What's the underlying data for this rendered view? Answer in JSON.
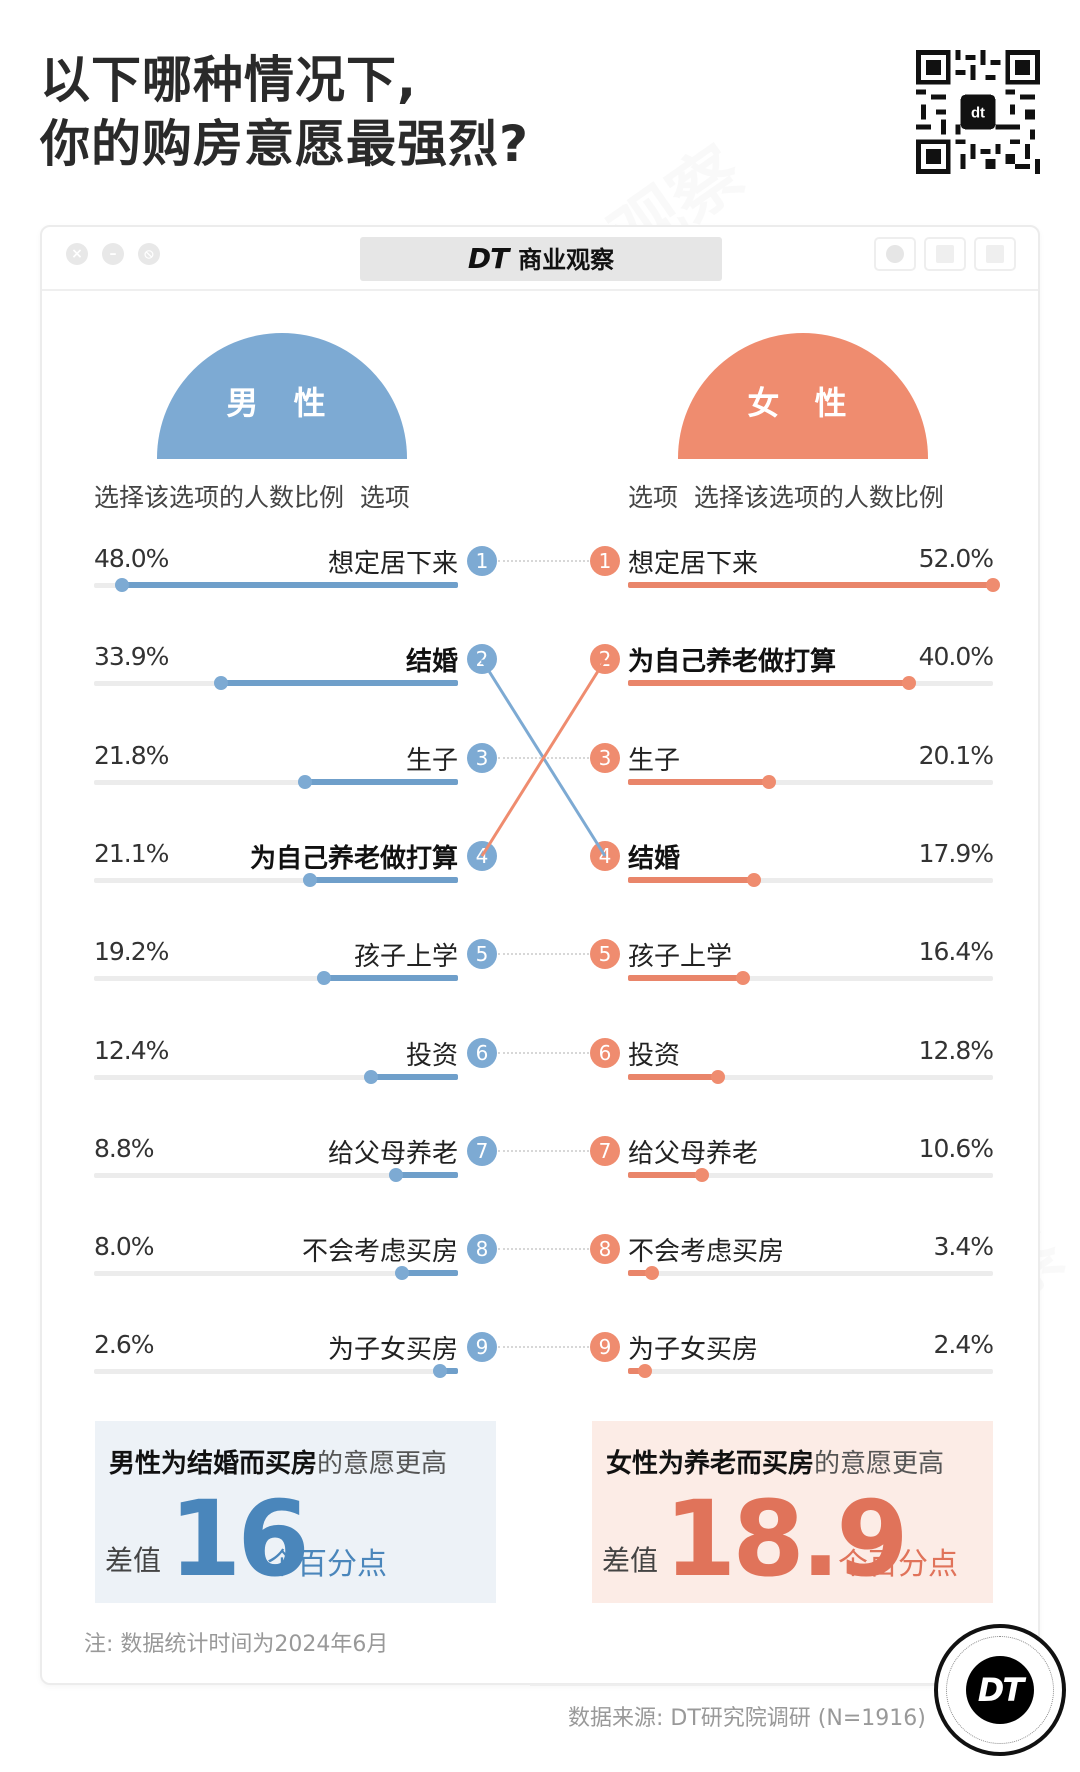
{
  "header": {
    "title_line1": "以下哪种情况下,",
    "title_line2": "你的购房意愿最强烈?",
    "qr_icon": "qr-code"
  },
  "window": {
    "brand": "DT",
    "title": "商业观察",
    "controls": [
      "close",
      "minimize",
      "disable"
    ],
    "tools": [
      "record",
      "share",
      "copy"
    ]
  },
  "legend": {
    "male": "男 性",
    "female": "女 性",
    "male_col_head": "选择该选项的人数比例  选项",
    "female_col_head": "选项  选择该选项的人数比例"
  },
  "colors": {
    "male": "#7daad3",
    "male_dark": "#4a86bb",
    "female": "#ef8c6f",
    "female_dark": "#e0735a",
    "male_box": "#edf2f7",
    "female_box": "#fcece6"
  },
  "chart_data": {
    "type": "bar",
    "title": "以下哪种情况下,你的购房意愿最强烈?",
    "xlabel": "选择该选项的人数比例",
    "ylabel": "选项",
    "unit": "%",
    "xlim": [
      0,
      52
    ],
    "series": [
      {
        "name": "男性",
        "items": [
          {
            "rank": 1,
            "label": "想定居下来",
            "value": 48.0,
            "pct": "48.0%",
            "bold": false
          },
          {
            "rank": 2,
            "label": "结婚",
            "value": 33.9,
            "pct": "33.9%",
            "bold": true
          },
          {
            "rank": 3,
            "label": "生子",
            "value": 21.8,
            "pct": "21.8%",
            "bold": false
          },
          {
            "rank": 4,
            "label": "为自己养老做打算",
            "value": 21.1,
            "pct": "21.1%",
            "bold": true
          },
          {
            "rank": 5,
            "label": "孩子上学",
            "value": 19.2,
            "pct": "19.2%",
            "bold": false
          },
          {
            "rank": 6,
            "label": "投资",
            "value": 12.4,
            "pct": "12.4%",
            "bold": false
          },
          {
            "rank": 7,
            "label": "给父母养老",
            "value": 8.8,
            "pct": "8.8%",
            "bold": false
          },
          {
            "rank": 8,
            "label": "不会考虑买房",
            "value": 8.0,
            "pct": "8.0%",
            "bold": false
          },
          {
            "rank": 9,
            "label": "为子女买房",
            "value": 2.6,
            "pct": "2.6%",
            "bold": false
          }
        ]
      },
      {
        "name": "女性",
        "items": [
          {
            "rank": 1,
            "label": "想定居下来",
            "value": 52.0,
            "pct": "52.0%",
            "bold": false
          },
          {
            "rank": 2,
            "label": "为自己养老做打算",
            "value": 40.0,
            "pct": "40.0%",
            "bold": true
          },
          {
            "rank": 3,
            "label": "生子",
            "value": 20.1,
            "pct": "20.1%",
            "bold": false
          },
          {
            "rank": 4,
            "label": "结婚",
            "value": 17.9,
            "pct": "17.9%",
            "bold": true
          },
          {
            "rank": 5,
            "label": "孩子上学",
            "value": 16.4,
            "pct": "16.4%",
            "bold": false
          },
          {
            "rank": 6,
            "label": "投资",
            "value": 12.8,
            "pct": "12.8%",
            "bold": false
          },
          {
            "rank": 7,
            "label": "给父母养老",
            "value": 10.6,
            "pct": "10.6%",
            "bold": false
          },
          {
            "rank": 8,
            "label": "不会考虑买房",
            "value": 3.4,
            "pct": "3.4%",
            "bold": false
          },
          {
            "rank": 9,
            "label": "为子女买房",
            "value": 2.4,
            "pct": "2.4%",
            "bold": false
          }
        ]
      }
    ],
    "crossings": [
      {
        "series": "男性",
        "from_rank": 2,
        "to_rank": 4,
        "label": "结婚"
      },
      {
        "series": "女性",
        "from_rank": 2,
        "to_rank": 4,
        "label": "为自己养老做打算"
      }
    ],
    "annotations": [
      "男性为结婚而买房的意愿更高 差值16个百分点",
      "女性为养老而买房的意愿更高 差值18.9个百分点"
    ]
  },
  "summary": {
    "male": {
      "title_bold": "男性为结婚而买房",
      "title_rest": "的意愿更高",
      "diff_label": "差值",
      "value": "16",
      "unit": "个百分点"
    },
    "female": {
      "title_bold": "女性为养老而买房",
      "title_rest": "的意愿更高",
      "diff_label": "差值",
      "value": "18.9",
      "unit": "个百分点"
    }
  },
  "footer": {
    "note": "注: 数据统计时间为2024年6月",
    "source": "数据来源: DT研究院调研 (N=1916)",
    "badge": "DT"
  }
}
